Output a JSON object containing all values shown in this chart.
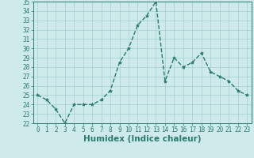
{
  "xlabel": "Humidex (Indice chaleur)",
  "ylabel": "",
  "x": [
    0,
    1,
    2,
    3,
    4,
    5,
    6,
    7,
    8,
    9,
    10,
    11,
    12,
    13,
    14,
    15,
    16,
    17,
    18,
    19,
    20,
    21,
    22,
    23
  ],
  "y": [
    25.0,
    24.5,
    23.5,
    22.0,
    24.0,
    24.0,
    24.0,
    24.5,
    25.5,
    28.5,
    30.0,
    32.5,
    33.5,
    35.0,
    26.5,
    29.0,
    28.0,
    28.5,
    29.5,
    27.5,
    27.0,
    26.5,
    25.5,
    25.0
  ],
  "line_color": "#2a7a6e",
  "marker": "*",
  "marker_size": 3,
  "bg_color": "#ceeaea",
  "grid_color": "#aad4d4",
  "ylim": [
    22,
    35
  ],
  "xlim": [
    -0.5,
    23.5
  ],
  "yticks": [
    22,
    23,
    24,
    25,
    26,
    27,
    28,
    29,
    30,
    31,
    32,
    33,
    34,
    35
  ],
  "xticks": [
    0,
    1,
    2,
    3,
    4,
    5,
    6,
    7,
    8,
    9,
    10,
    11,
    12,
    13,
    14,
    15,
    16,
    17,
    18,
    19,
    20,
    21,
    22,
    23
  ],
  "tick_fontsize": 5.5,
  "xlabel_fontsize": 7.5,
  "line_width": 1.0
}
